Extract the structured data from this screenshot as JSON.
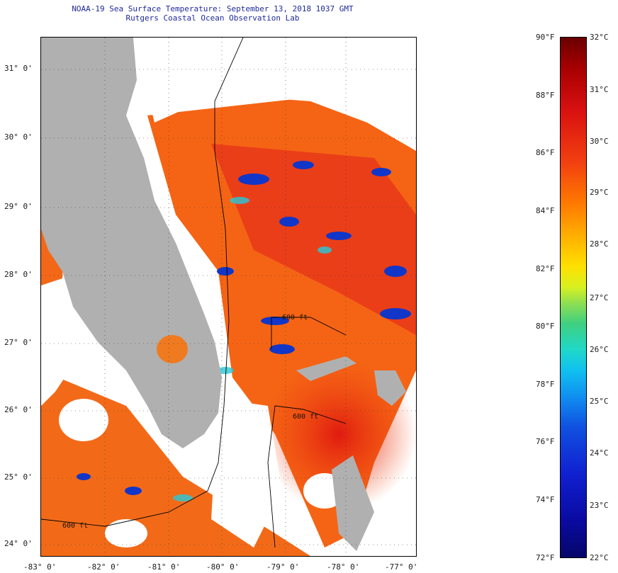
{
  "title": {
    "line1": "NOAA-19 Sea Surface Temperature:  September 13, 2018 1037 GMT",
    "line2": "Rutgers Coastal Ocean Observation Lab"
  },
  "map": {
    "lon_labels": [
      "-83° 0'",
      "-82° 0'",
      "-81° 0'",
      "-80° 0'",
      "-79° 0'",
      "-78° 0'",
      "-77° 0'"
    ],
    "lat_labels": [
      "31° 0'",
      "30° 0'",
      "29° 0'",
      "28° 0'",
      "27° 0'",
      "26° 0'",
      "25° 0'",
      "24° 0'"
    ],
    "contour_labels": [
      "600 ft",
      "600 ft",
      "600 ft"
    ],
    "colors": {
      "land": "#b0b0b0",
      "warm_water": "#ff6a10",
      "hot_water": "#e82010",
      "cool_patch": "#1030c0",
      "cloud": "#ffffff"
    }
  },
  "colorbar": {
    "f_labels": [
      "90°F",
      "88°F",
      "86°F",
      "84°F",
      "82°F",
      "80°F",
      "78°F",
      "76°F",
      "74°F",
      "72°F"
    ],
    "c_labels": [
      "32°C",
      "31°C",
      "30°C",
      "29°C",
      "28°C",
      "27°C",
      "26°C",
      "25°C",
      "24°C",
      "23°C",
      "22°C"
    ],
    "f_range": [
      72,
      90
    ],
    "c_range": [
      22,
      32
    ]
  }
}
